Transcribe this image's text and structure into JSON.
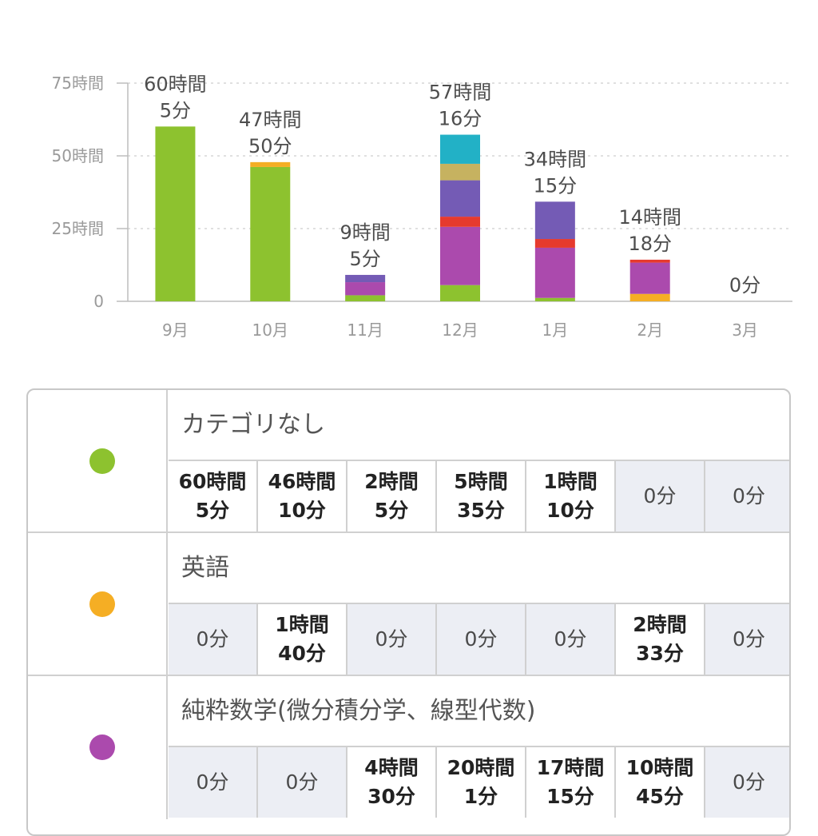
{
  "chart_data": {
    "type": "bar",
    "stacked": true,
    "categories": [
      "9月",
      "10月",
      "11月",
      "12月",
      "1月",
      "2月",
      "3月"
    ],
    "y_ticks": [
      "75時間",
      "50時間",
      "25時間",
      "0"
    ],
    "ylim": [
      0,
      75
    ],
    "grid": true,
    "totals_labels": [
      [
        "60時間",
        "5分"
      ],
      [
        "47時間",
        "50分"
      ],
      [
        "9時間",
        "5分"
      ],
      [
        "57時間",
        "16分"
      ],
      [
        "34時間",
        "15分"
      ],
      [
        "14時間",
        "18分"
      ],
      [
        "0分"
      ]
    ],
    "totals_hours": [
      60.08,
      47.83,
      9.08,
      57.27,
      34.25,
      14.3,
      0
    ],
    "series": [
      {
        "name": "カテゴリなし",
        "color": "#8dc22f",
        "values": [
          60.08,
          46.17,
          2.08,
          5.58,
          1.17,
          0,
          0
        ]
      },
      {
        "name": "英語",
        "color": "#f5ae24",
        "values": [
          0,
          1.67,
          0,
          0,
          0,
          2.55,
          0
        ]
      },
      {
        "name": "純粋数学(微分積分学、線型代数)",
        "color": "#ab4aad",
        "values": [
          0,
          0,
          4.5,
          20.02,
          17.25,
          10.75,
          0
        ]
      },
      {
        "name": "",
        "color": "#e63a2e",
        "values": [
          0,
          0,
          0,
          3.5,
          3.0,
          1.0,
          0
        ]
      },
      {
        "name": "",
        "color": "#745bb5",
        "values": [
          0,
          0,
          2.5,
          12.5,
          12.83,
          0,
          0
        ]
      },
      {
        "name": "",
        "color": "#c6b260",
        "values": [
          0,
          0,
          0,
          5.67,
          0,
          0,
          0
        ]
      },
      {
        "name": "",
        "color": "#22b1c6",
        "values": [
          0,
          0,
          0,
          10.0,
          0,
          0,
          0
        ]
      }
    ]
  },
  "table": {
    "rows": [
      {
        "name": "カテゴリなし",
        "color": "#8dc22f",
        "cells": [
          "60時間\n5分",
          "46時間\n10分",
          "2時間\n5分",
          "5時間\n35分",
          "1時間\n10分",
          "0分",
          "0分"
        ]
      },
      {
        "name": "英語",
        "color": "#f5ae24",
        "cells": [
          "0分",
          "1時間\n40分",
          "0分",
          "0分",
          "0分",
          "2時間\n33分",
          "0分"
        ]
      },
      {
        "name": "純粋数学(微分積分学、線型代数)",
        "color": "#ab4aad",
        "cells": [
          "0分",
          "0分",
          "4時間\n30分",
          "20時間\n1分",
          "17時間\n15分",
          "10時間\n45分",
          "0分"
        ]
      }
    ]
  }
}
